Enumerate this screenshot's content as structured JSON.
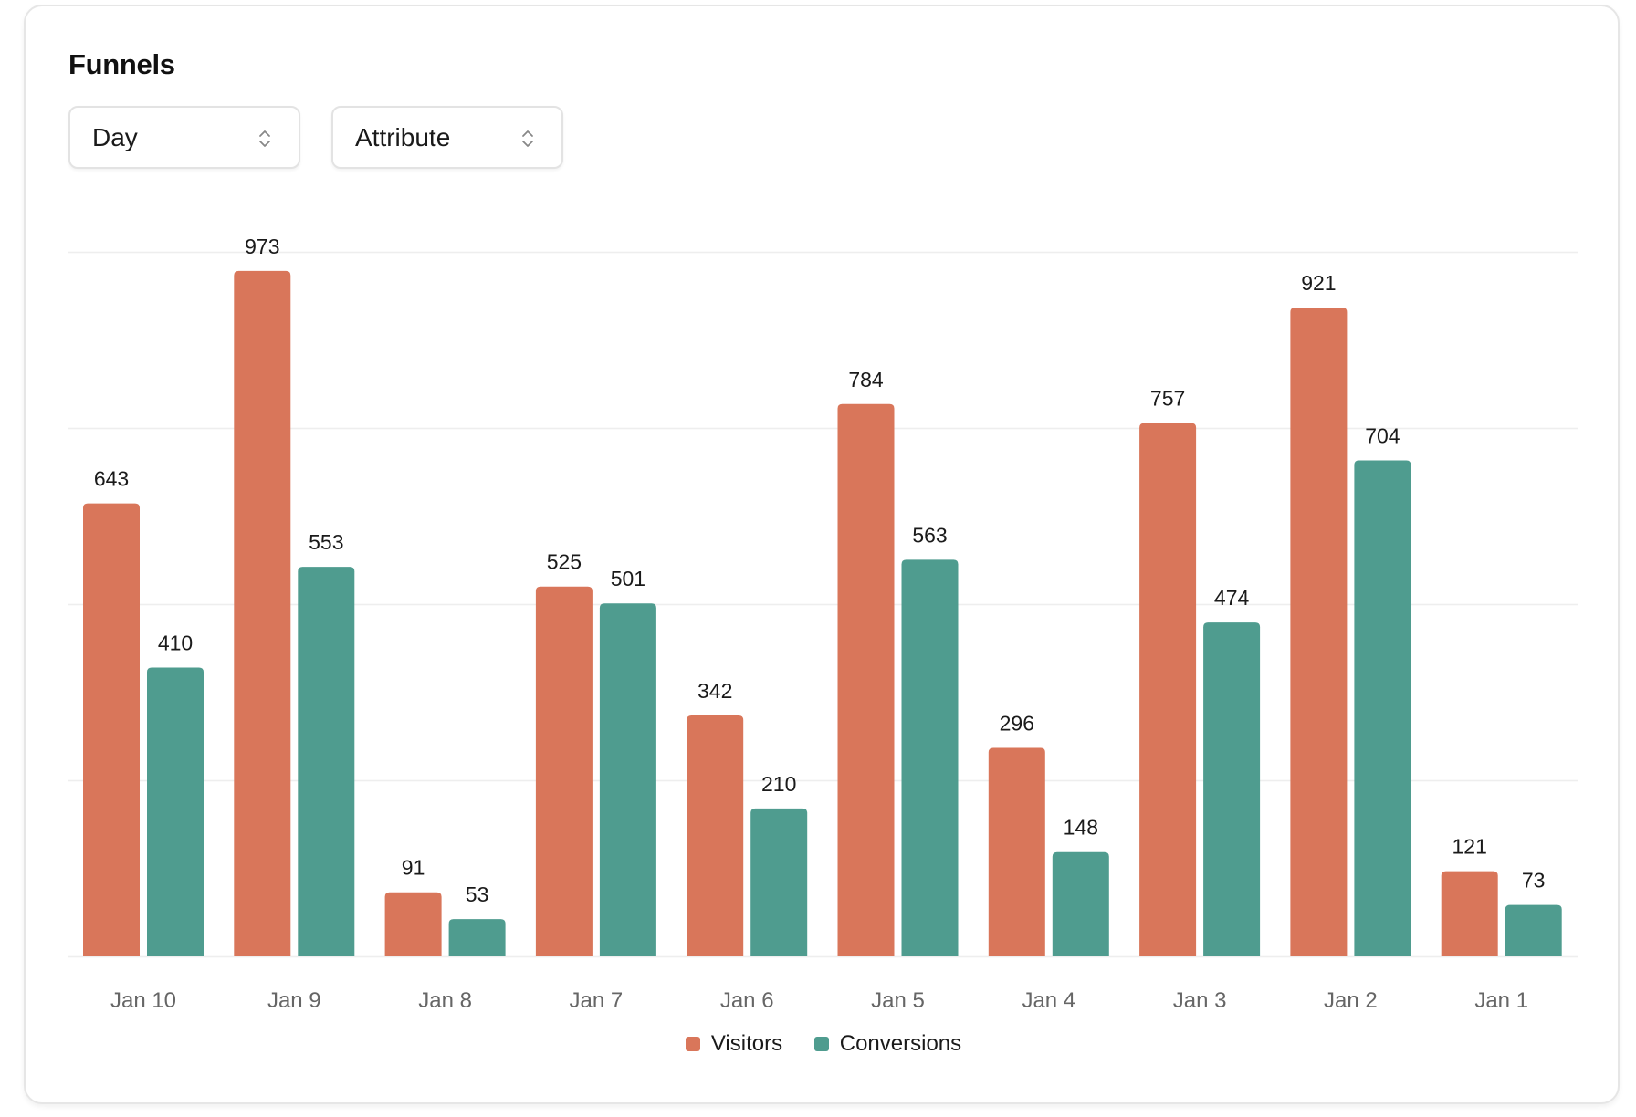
{
  "card": {
    "title": "Funnels"
  },
  "controls": {
    "period_select": {
      "value": "Day",
      "icon": "chevron-up-down-icon"
    },
    "attribute_select": {
      "value": "Attribute",
      "icon": "chevron-up-down-icon"
    }
  },
  "colors": {
    "visitors": "#d9765a",
    "conversions": "#4f9c8f",
    "gridline": "#eeeeee",
    "tick_label": "#666666",
    "value_label": "#1a1a1a"
  },
  "chart_data": {
    "type": "bar",
    "title": "",
    "xlabel": "",
    "ylabel": "",
    "categories": [
      "Jan 10",
      "Jan 9",
      "Jan 8",
      "Jan 7",
      "Jan 6",
      "Jan 5",
      "Jan 4",
      "Jan 3",
      "Jan 2",
      "Jan 1"
    ],
    "series": [
      {
        "name": "Visitors",
        "values": [
          643,
          973,
          91,
          525,
          342,
          784,
          296,
          757,
          921,
          121
        ]
      },
      {
        "name": "Conversions",
        "values": [
          410,
          553,
          53,
          501,
          210,
          563,
          148,
          474,
          704,
          73
        ]
      }
    ],
    "ylim": [
      0,
      1000
    ],
    "grid": true,
    "y_axis_labels_shown": false,
    "data_labels": true,
    "legend": "bottom-center"
  }
}
